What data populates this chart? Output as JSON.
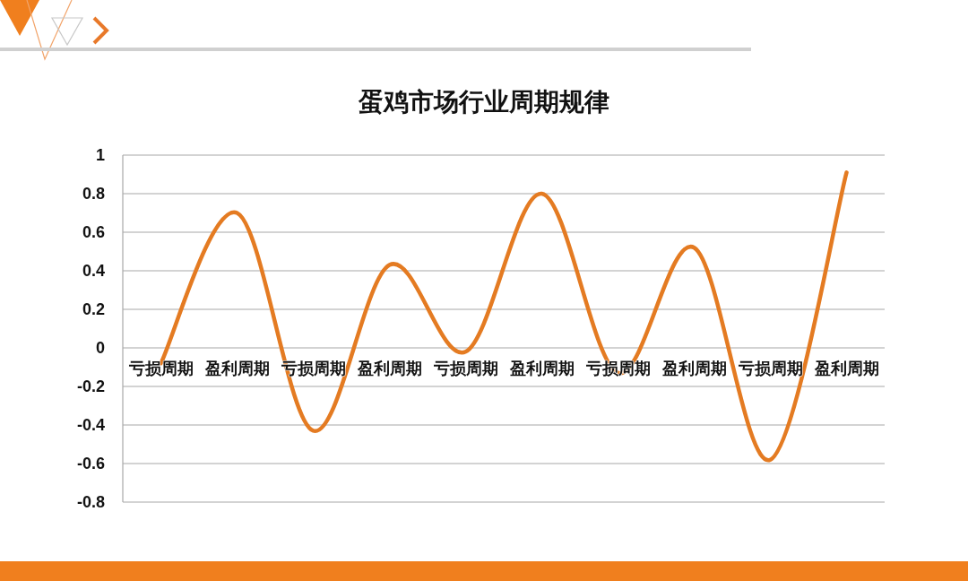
{
  "chart_data": {
    "type": "line",
    "title": "蛋鸡市场行业周期规律",
    "categories": [
      "亏损周期",
      "盈利周期",
      "亏损周期",
      "盈利周期",
      "亏损周期",
      "盈利周期",
      "亏损周期",
      "盈利周期",
      "亏损周期",
      "盈利周期"
    ],
    "series": [
      {
        "color": "#e47b22",
        "values": [
          -0.08,
          0.7,
          -0.43,
          0.43,
          -0.02,
          0.8,
          -0.13,
          0.52,
          -0.58,
          0.91
        ]
      }
    ],
    "ylim": [
      -0.8,
      1
    ],
    "yticks": [
      -0.8,
      -0.6,
      -0.4,
      -0.2,
      0,
      0.2,
      0.4,
      0.6,
      0.8,
      1
    ],
    "grid": "y"
  }
}
